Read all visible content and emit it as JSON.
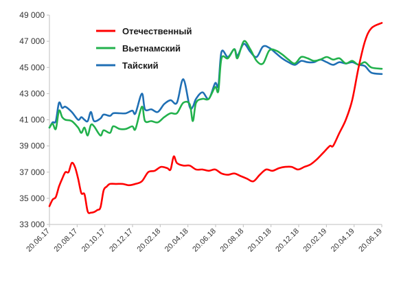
{
  "chart_data": {
    "type": "line",
    "title": "",
    "xlabel": "",
    "ylabel": "",
    "ylim": [
      33000,
      49000
    ],
    "grid": false,
    "legend_position": "top-left",
    "y_ticks": [
      "33 000",
      "35 000",
      "37 000",
      "39 000",
      "41 000",
      "43 000",
      "45 000",
      "47 000",
      "49 000"
    ],
    "y_tick_values": [
      33000,
      35000,
      37000,
      39000,
      41000,
      43000,
      45000,
      47000,
      49000
    ],
    "x_ticks": [
      "20.06.17",
      "20.08.17",
      "20.10.17",
      "20.12.17",
      "20.02.18",
      "20.04.18",
      "20.06.18",
      "20.08.18",
      "20.10.18",
      "20.12.18",
      "20.02.19",
      "20.04.19",
      "20.06.19"
    ],
    "x_range": [
      "2017-06-20",
      "2019-06-20"
    ],
    "series": [
      {
        "name": "Отечественный",
        "color": "#ff0000",
        "points": [
          [
            "2017-06-20",
            34400
          ],
          [
            "2017-06-27",
            34900
          ],
          [
            "2017-07-04",
            35100
          ],
          [
            "2017-07-11",
            35900
          ],
          [
            "2017-07-18",
            36500
          ],
          [
            "2017-07-25",
            37000
          ],
          [
            "2017-08-01",
            37000
          ],
          [
            "2017-08-08",
            37700
          ],
          [
            "2017-08-15",
            37400
          ],
          [
            "2017-08-22",
            36500
          ],
          [
            "2017-08-29",
            35400
          ],
          [
            "2017-09-05",
            35300
          ],
          [
            "2017-09-12",
            34000
          ],
          [
            "2017-09-19",
            33900
          ],
          [
            "2017-09-26",
            33950
          ],
          [
            "2017-10-03",
            34100
          ],
          [
            "2017-10-10",
            34300
          ],
          [
            "2017-10-17",
            35600
          ],
          [
            "2017-10-24",
            35900
          ],
          [
            "2017-10-31",
            36100
          ],
          [
            "2017-11-14",
            36100
          ],
          [
            "2017-11-28",
            36100
          ],
          [
            "2017-12-12",
            36000
          ],
          [
            "2017-12-26",
            36100
          ],
          [
            "2018-01-09",
            36300
          ],
          [
            "2018-01-23",
            37000
          ],
          [
            "2018-02-06",
            37100
          ],
          [
            "2018-02-20",
            37400
          ],
          [
            "2018-03-06",
            37300
          ],
          [
            "2018-03-13",
            37200
          ],
          [
            "2018-03-20",
            38200
          ],
          [
            "2018-03-27",
            37700
          ],
          [
            "2018-04-10",
            37500
          ],
          [
            "2018-04-24",
            37500
          ],
          [
            "2018-05-08",
            37200
          ],
          [
            "2018-05-22",
            37200
          ],
          [
            "2018-06-05",
            37100
          ],
          [
            "2018-06-19",
            37200
          ],
          [
            "2018-07-03",
            36900
          ],
          [
            "2018-07-17",
            36800
          ],
          [
            "2018-07-31",
            36900
          ],
          [
            "2018-08-14",
            36700
          ],
          [
            "2018-08-28",
            36500
          ],
          [
            "2018-09-11",
            36300
          ],
          [
            "2018-09-25",
            36800
          ],
          [
            "2018-10-09",
            37200
          ],
          [
            "2018-10-23",
            37100
          ],
          [
            "2018-11-06",
            37300
          ],
          [
            "2018-11-20",
            37400
          ],
          [
            "2018-12-04",
            37400
          ],
          [
            "2018-12-18",
            37200
          ],
          [
            "2019-01-01",
            37400
          ],
          [
            "2019-01-15",
            37600
          ],
          [
            "2019-01-29",
            38000
          ],
          [
            "2019-02-12",
            38500
          ],
          [
            "2019-02-26",
            39000
          ],
          [
            "2019-03-05",
            39000
          ],
          [
            "2019-03-19",
            40000
          ],
          [
            "2019-04-02",
            41000
          ],
          [
            "2019-04-16",
            42500
          ],
          [
            "2019-04-30",
            45000
          ],
          [
            "2019-05-14",
            47000
          ],
          [
            "2019-05-28",
            48000
          ],
          [
            "2019-06-20",
            48400
          ]
        ]
      },
      {
        "name": "Вьетнамский",
        "color": "#22b14c",
        "points": [
          [
            "2017-06-20",
            40400
          ],
          [
            "2017-06-27",
            40700
          ],
          [
            "2017-07-04",
            40300
          ],
          [
            "2017-07-11",
            41700
          ],
          [
            "2017-07-18",
            41200
          ],
          [
            "2017-07-25",
            41000
          ],
          [
            "2017-08-08",
            40900
          ],
          [
            "2017-08-22",
            40400
          ],
          [
            "2017-08-29",
            40000
          ],
          [
            "2017-09-05",
            40400
          ],
          [
            "2017-09-12",
            39800
          ],
          [
            "2017-09-19",
            40600
          ],
          [
            "2017-09-26",
            40500
          ],
          [
            "2017-10-10",
            39800
          ],
          [
            "2017-10-17",
            40200
          ],
          [
            "2017-10-31",
            40000
          ],
          [
            "2017-11-07",
            40500
          ],
          [
            "2017-11-21",
            40300
          ],
          [
            "2017-12-05",
            40300
          ],
          [
            "2017-12-19",
            40500
          ],
          [
            "2017-12-26",
            40300
          ],
          [
            "2018-01-09",
            42000
          ],
          [
            "2018-01-16",
            40900
          ],
          [
            "2018-01-30",
            40900
          ],
          [
            "2018-02-13",
            40800
          ],
          [
            "2018-02-27",
            41200
          ],
          [
            "2018-03-13",
            41500
          ],
          [
            "2018-03-27",
            41500
          ],
          [
            "2018-04-10",
            42300
          ],
          [
            "2018-04-24",
            42200
          ],
          [
            "2018-05-01",
            40900
          ],
          [
            "2018-05-08",
            42300
          ],
          [
            "2018-05-22",
            42600
          ],
          [
            "2018-06-05",
            42600
          ],
          [
            "2018-06-19",
            43500
          ],
          [
            "2018-06-26",
            43200
          ],
          [
            "2018-07-03",
            45700
          ],
          [
            "2018-07-17",
            45700
          ],
          [
            "2018-07-31",
            46400
          ],
          [
            "2018-08-07",
            45700
          ],
          [
            "2018-08-21",
            47000
          ],
          [
            "2018-09-04",
            46400
          ],
          [
            "2018-09-18",
            45500
          ],
          [
            "2018-10-02",
            45300
          ],
          [
            "2018-10-16",
            46300
          ],
          [
            "2018-10-30",
            46300
          ],
          [
            "2018-11-13",
            46000
          ],
          [
            "2018-11-27",
            45600
          ],
          [
            "2018-12-11",
            45300
          ],
          [
            "2018-12-25",
            45800
          ],
          [
            "2019-01-08",
            45700
          ],
          [
            "2019-01-22",
            45500
          ],
          [
            "2019-02-05",
            45600
          ],
          [
            "2019-02-19",
            45800
          ],
          [
            "2019-03-05",
            45600
          ],
          [
            "2019-03-19",
            45700
          ],
          [
            "2019-04-02",
            45300
          ],
          [
            "2019-04-16",
            45500
          ],
          [
            "2019-04-30",
            45200
          ],
          [
            "2019-05-14",
            45400
          ],
          [
            "2019-05-28",
            45000
          ],
          [
            "2019-06-20",
            44900
          ]
        ]
      },
      {
        "name": "Тайский",
        "color": "#1f6fb4",
        "points": [
          [
            "2017-06-20",
            40400
          ],
          [
            "2017-06-27",
            40800
          ],
          [
            "2017-07-04",
            40900
          ],
          [
            "2017-07-11",
            42300
          ],
          [
            "2017-07-18",
            41900
          ],
          [
            "2017-07-25",
            42000
          ],
          [
            "2017-08-08",
            41600
          ],
          [
            "2017-08-22",
            41000
          ],
          [
            "2017-08-29",
            41200
          ],
          [
            "2017-09-05",
            41000
          ],
          [
            "2017-09-12",
            40900
          ],
          [
            "2017-09-19",
            41600
          ],
          [
            "2017-09-26",
            40900
          ],
          [
            "2017-10-10",
            41100
          ],
          [
            "2017-10-17",
            41400
          ],
          [
            "2017-10-31",
            41300
          ],
          [
            "2017-11-07",
            41500
          ],
          [
            "2017-11-21",
            41500
          ],
          [
            "2017-12-05",
            41500
          ],
          [
            "2017-12-19",
            41700
          ],
          [
            "2017-12-26",
            41500
          ],
          [
            "2018-01-09",
            43000
          ],
          [
            "2018-01-16",
            41800
          ],
          [
            "2018-01-30",
            41800
          ],
          [
            "2018-02-13",
            41600
          ],
          [
            "2018-02-27",
            42200
          ],
          [
            "2018-03-13",
            42500
          ],
          [
            "2018-03-27",
            42300
          ],
          [
            "2018-04-10",
            44100
          ],
          [
            "2018-04-24",
            42000
          ],
          [
            "2018-05-01",
            42000
          ],
          [
            "2018-05-08",
            42600
          ],
          [
            "2018-05-22",
            43100
          ],
          [
            "2018-06-05",
            42600
          ],
          [
            "2018-06-19",
            43800
          ],
          [
            "2018-06-26",
            43600
          ],
          [
            "2018-07-03",
            46200
          ],
          [
            "2018-07-17",
            45800
          ],
          [
            "2018-07-31",
            46400
          ],
          [
            "2018-08-07",
            45900
          ],
          [
            "2018-08-21",
            46800
          ],
          [
            "2018-09-04",
            46200
          ],
          [
            "2018-09-18",
            45800
          ],
          [
            "2018-10-02",
            46600
          ],
          [
            "2018-10-16",
            46500
          ],
          [
            "2018-10-30",
            46100
          ],
          [
            "2018-11-13",
            45700
          ],
          [
            "2018-11-27",
            45400
          ],
          [
            "2018-12-11",
            45200
          ],
          [
            "2018-12-25",
            45500
          ],
          [
            "2019-01-08",
            45400
          ],
          [
            "2019-01-22",
            45400
          ],
          [
            "2019-02-05",
            45600
          ],
          [
            "2019-02-19",
            45400
          ],
          [
            "2019-03-05",
            45200
          ],
          [
            "2019-03-19",
            45400
          ],
          [
            "2019-04-02",
            45300
          ],
          [
            "2019-04-16",
            45400
          ],
          [
            "2019-04-30",
            45200
          ],
          [
            "2019-05-14",
            45100
          ],
          [
            "2019-05-28",
            44600
          ],
          [
            "2019-06-20",
            44500
          ]
        ]
      }
    ]
  }
}
